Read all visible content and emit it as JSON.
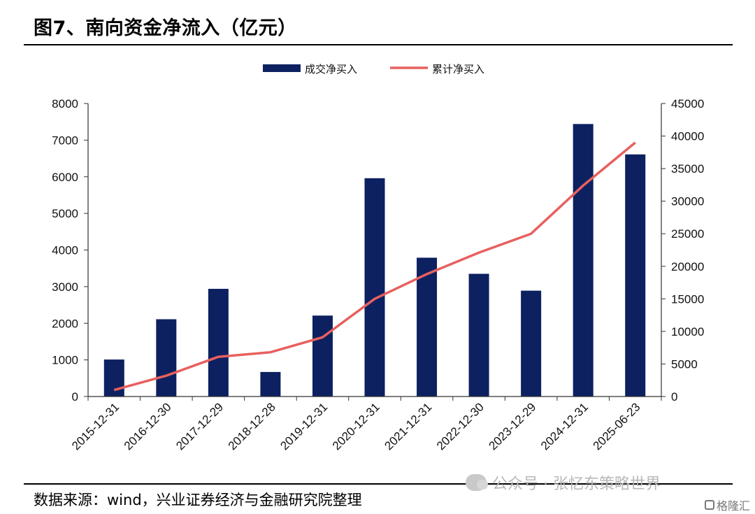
{
  "title": "图7、南向资金净流入（亿元）",
  "source": "数据来源：wind，兴业证券经济与金融研究院整理",
  "watermark": "公众号 · 张忆东策略世界",
  "brand": "格隆汇",
  "colors": {
    "bar": "#0d2160",
    "line": "#e8605f",
    "axis": "#333333"
  },
  "chart_data": {
    "type": "bar",
    "categories": [
      "2015-12-31",
      "2016-12-30",
      "2017-12-29",
      "2018-12-28",
      "2019-12-31",
      "2020-12-31",
      "2021-12-31",
      "2022-12-30",
      "2023-12-29",
      "2024-12-31",
      "2025-06-23"
    ],
    "series": [
      {
        "name": "成交净买入",
        "type": "bar",
        "axis": "left",
        "values": [
          1010,
          2110,
          2940,
          670,
          2210,
          5960,
          3790,
          3350,
          2890,
          7440,
          6610
        ]
      },
      {
        "name": "累计净买入",
        "type": "line",
        "axis": "right",
        "values": [
          1000,
          3200,
          6100,
          6800,
          9100,
          15000,
          18800,
          22100,
          25000,
          32400,
          39000
        ]
      }
    ],
    "y_left": {
      "min": 0,
      "max": 8000,
      "step": 1000,
      "ticks": [
        "0",
        "1000",
        "2000",
        "3000",
        "4000",
        "5000",
        "6000",
        "7000",
        "8000"
      ]
    },
    "y_right": {
      "min": 0,
      "max": 45000,
      "step": 5000,
      "ticks": [
        "0",
        "5000",
        "10000",
        "15000",
        "20000",
        "25000",
        "30000",
        "35000",
        "40000",
        "45000"
      ]
    },
    "legend_position": "top-center",
    "grid": false
  }
}
